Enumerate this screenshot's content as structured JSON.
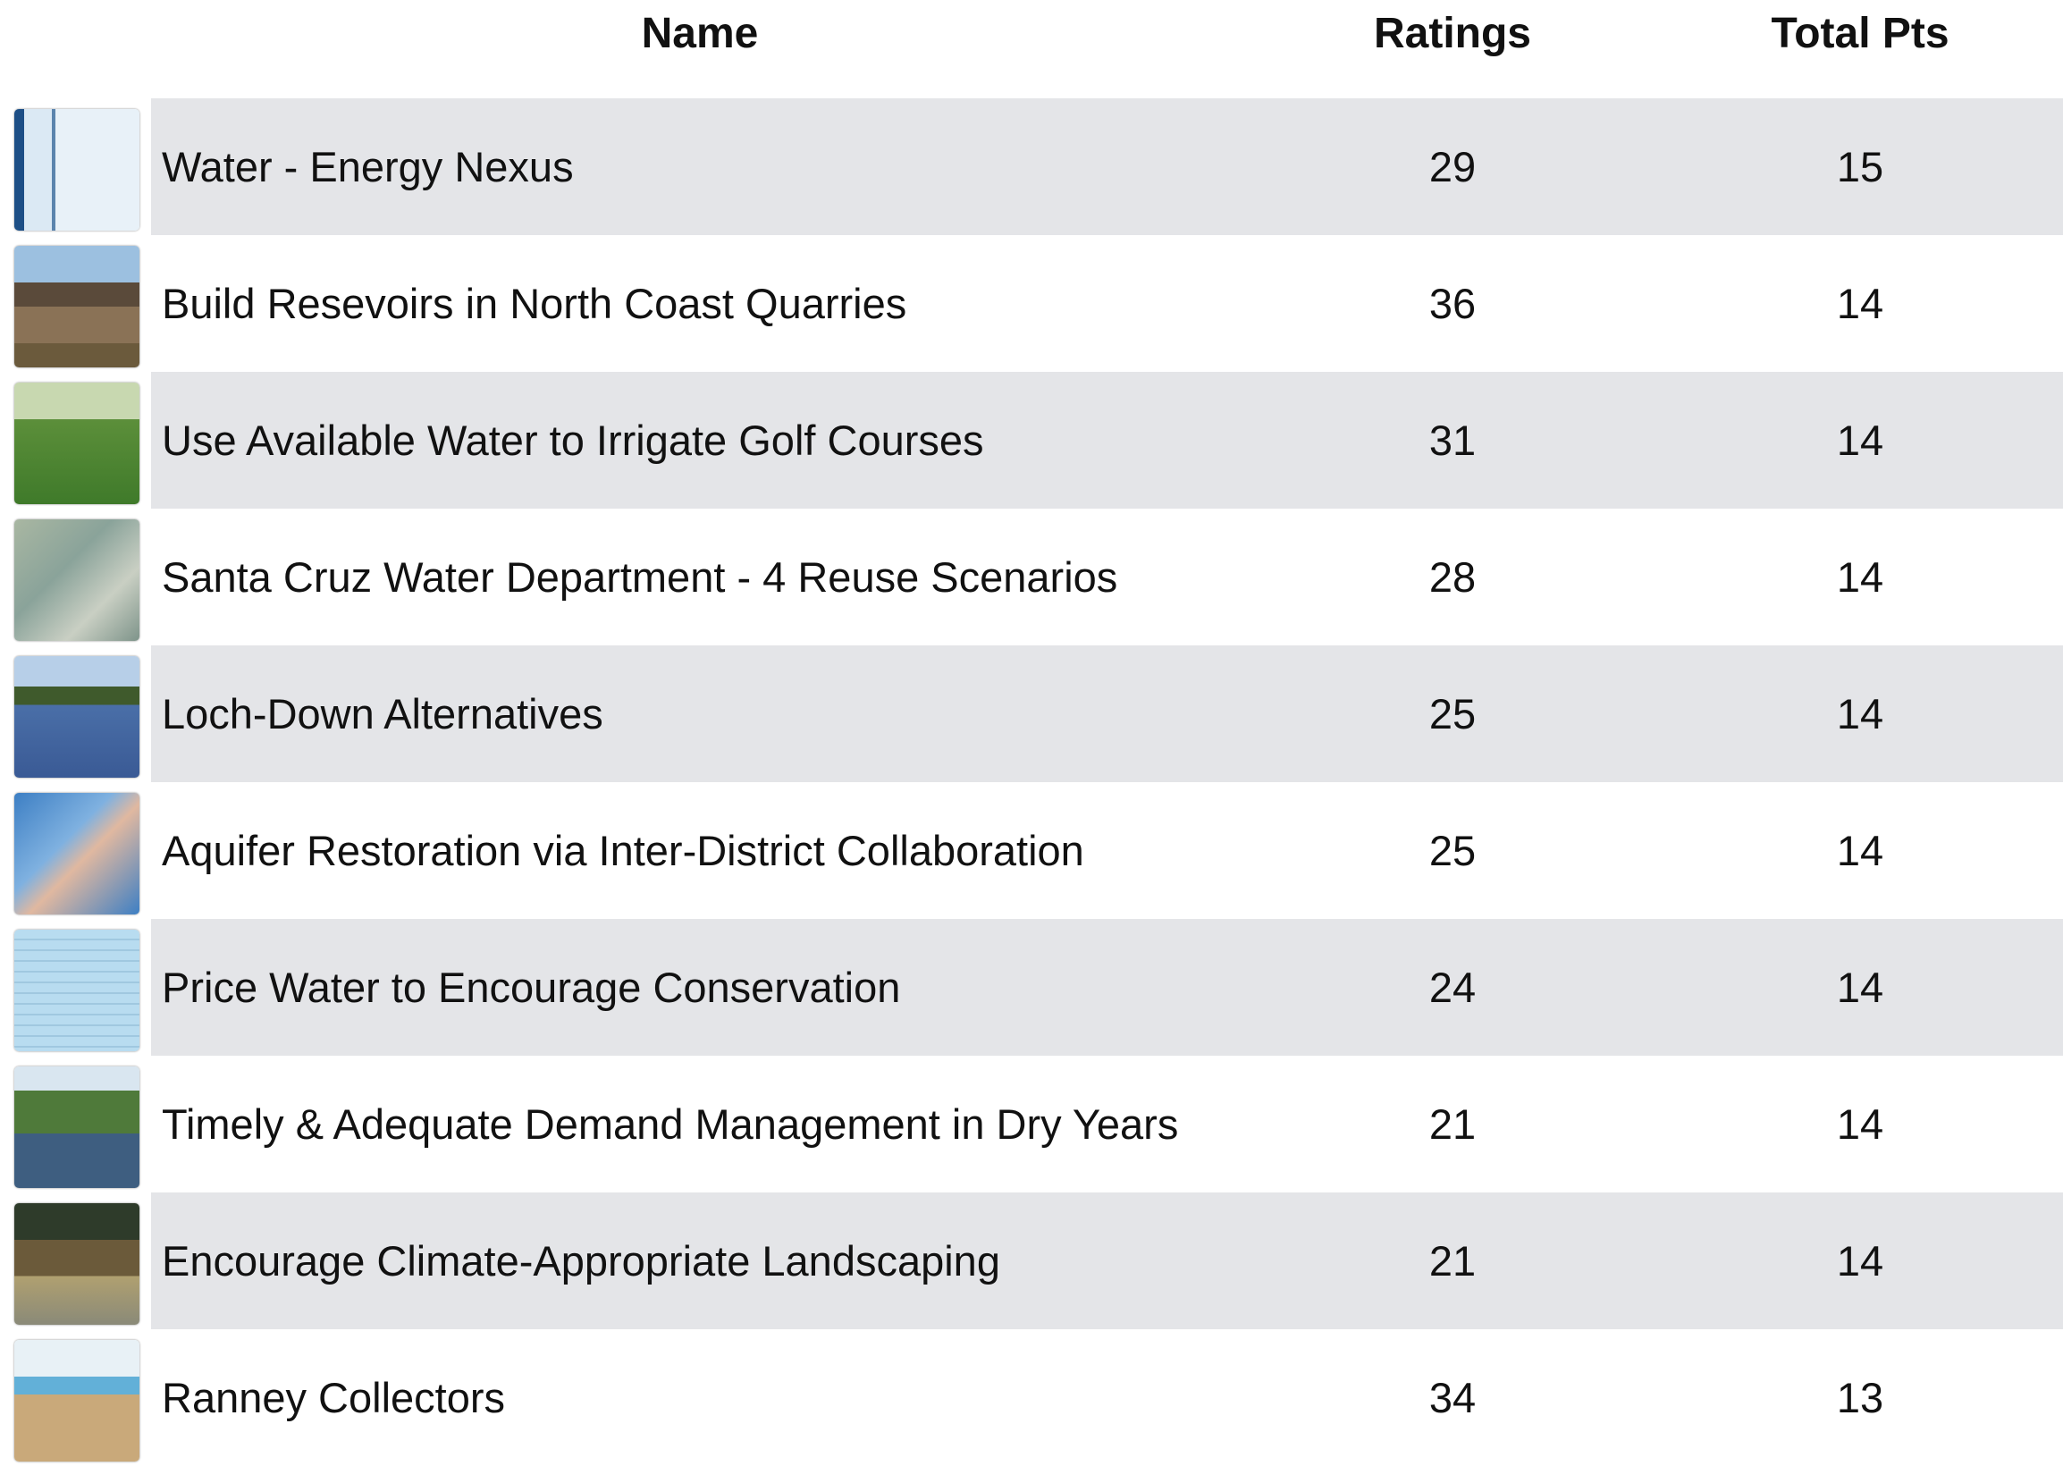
{
  "table": {
    "columns": [
      "Name",
      "Ratings",
      "Total Pts"
    ],
    "rows": [
      [
        "Water - Energy Nexus",
        "29",
        "15"
      ],
      [
        "Build Resevoirs in North Coast Quarries",
        "36",
        "14"
      ],
      [
        "Use Available Water to Irrigate Golf Courses",
        "31",
        "14"
      ],
      [
        "Santa Cruz Water Department - 4 Reuse Scenarios",
        "28",
        "14"
      ],
      [
        "Loch-Down Alternatives",
        "25",
        "14"
      ],
      [
        "Aquifer Restoration via Inter-District Collaboration",
        "25",
        "14"
      ],
      [
        "Price Water to Encourage Conservation",
        "24",
        "14"
      ],
      [
        "Timely & Adequate Demand Management in Dry Years",
        "21",
        "14"
      ],
      [
        "Encourage Climate-Appropriate Landscaping",
        "21",
        "14"
      ],
      [
        "Ranney Collectors",
        "34",
        "13"
      ]
    ]
  }
}
